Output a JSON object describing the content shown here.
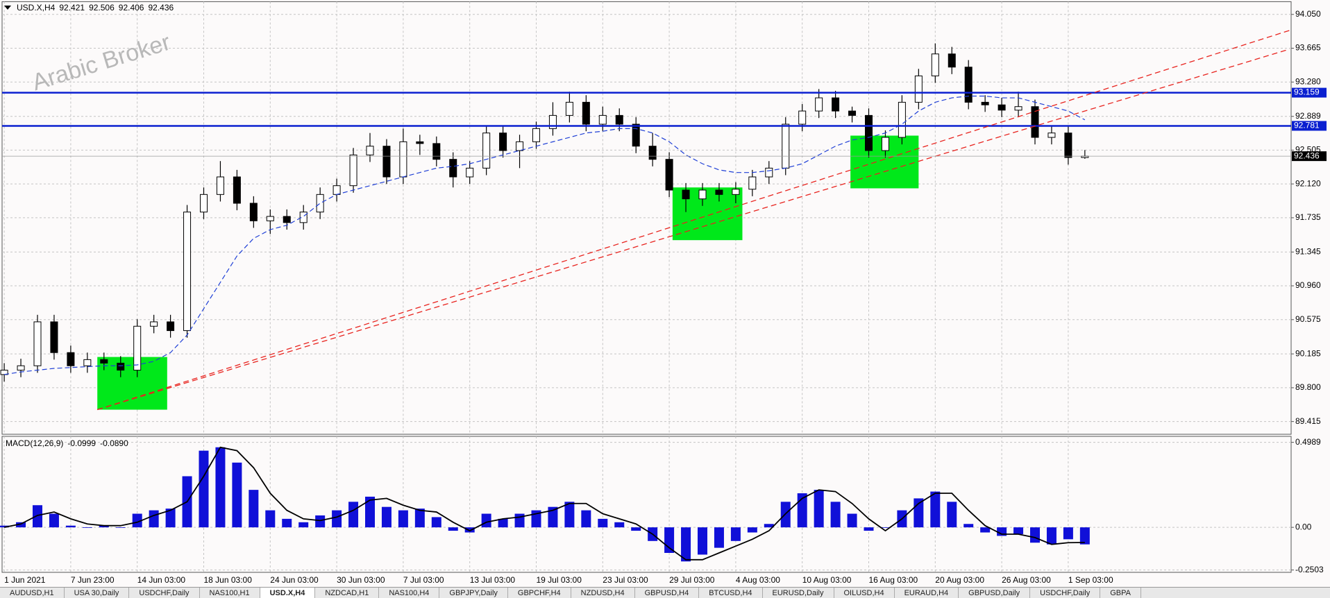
{
  "chart_data": [
    {
      "type": "candlestick",
      "title": "USD.X,H4",
      "watermark": "Arabic Broker",
      "categories": [
        "1 Jun 2021",
        null,
        null,
        null,
        "7 Jun 23:00",
        null,
        null,
        null,
        "14 Jun 03:00",
        null,
        null,
        null,
        "18 Jun 03:00",
        null,
        null,
        null,
        "24 Jun 03:00",
        null,
        null,
        null,
        "30 Jun 03:00",
        null,
        null,
        null,
        "7 Jul 03:00",
        null,
        null,
        null,
        "13 Jul 03:00",
        null,
        null,
        null,
        "19 Jul 03:00",
        null,
        null,
        null,
        "23 Jul 03:00",
        null,
        null,
        null,
        "29 Jul 03:00",
        null,
        null,
        null,
        "4 Aug 03:00",
        null,
        null,
        null,
        "10 Aug 03:00",
        null,
        null,
        null,
        "16 Aug 03:00",
        null,
        null,
        null,
        "20 Aug 03:00",
        null,
        null,
        null,
        "26 Aug 03:00",
        null,
        null,
        null,
        "1 Sep 03:00",
        null
      ],
      "open": [
        89.95,
        90.0,
        90.05,
        90.55,
        90.2,
        90.05,
        90.12,
        90.08,
        90.0,
        90.5,
        90.55,
        90.45,
        91.8,
        92.0,
        92.2,
        91.9,
        91.7,
        91.75,
        91.68,
        91.8,
        92.0,
        92.1,
        92.45,
        92.55,
        92.2,
        92.6,
        92.58,
        92.4,
        92.2,
        92.3,
        92.7,
        92.5,
        92.6,
        92.75,
        92.9,
        93.05,
        92.8,
        92.9,
        92.8,
        92.55,
        92.4,
        92.05,
        91.95,
        92.05,
        92.0,
        92.06,
        92.2,
        92.3,
        92.8,
        92.95,
        93.1,
        92.95,
        92.9,
        92.5,
        92.65,
        93.05,
        93.35,
        93.6,
        93.45,
        93.05,
        93.02,
        92.96,
        93.0,
        92.65,
        92.7,
        92.421
      ],
      "high": [
        90.08,
        90.13,
        90.63,
        90.63,
        90.28,
        90.2,
        90.2,
        90.16,
        90.58,
        90.63,
        90.63,
        91.88,
        92.08,
        92.38,
        92.28,
        91.98,
        91.83,
        91.83,
        91.88,
        92.08,
        92.18,
        92.53,
        92.7,
        92.63,
        92.75,
        92.68,
        92.66,
        92.48,
        92.38,
        92.78,
        92.78,
        92.68,
        92.83,
        93.05,
        93.17,
        93.13,
        93.0,
        92.98,
        92.88,
        92.7,
        92.48,
        92.13,
        92.13,
        92.13,
        92.14,
        92.28,
        92.38,
        92.88,
        93.03,
        93.2,
        93.18,
        93.0,
        92.98,
        92.73,
        93.13,
        93.43,
        93.72,
        93.68,
        93.53,
        93.13,
        93.1,
        93.17,
        93.08,
        92.78,
        92.78,
        92.506
      ],
      "low": [
        89.87,
        89.92,
        89.97,
        90.12,
        89.97,
        89.97,
        90.0,
        89.92,
        89.92,
        90.42,
        90.37,
        90.37,
        91.72,
        91.92,
        91.82,
        91.62,
        91.55,
        91.6,
        91.6,
        91.72,
        91.92,
        92.02,
        92.37,
        92.12,
        92.12,
        92.45,
        92.32,
        92.08,
        92.12,
        92.22,
        92.42,
        92.3,
        92.52,
        92.67,
        92.82,
        92.72,
        92.72,
        92.72,
        92.47,
        92.32,
        91.97,
        91.8,
        91.87,
        91.92,
        91.9,
        91.98,
        92.12,
        92.22,
        92.72,
        92.87,
        92.87,
        92.82,
        92.42,
        92.42,
        92.57,
        92.97,
        93.27,
        93.37,
        92.97,
        92.94,
        92.88,
        92.88,
        92.57,
        92.57,
        92.34,
        92.406
      ],
      "close": [
        90.0,
        90.05,
        90.55,
        90.2,
        90.05,
        90.12,
        90.08,
        90.0,
        90.5,
        90.55,
        90.45,
        91.8,
        92.0,
        92.2,
        91.9,
        91.7,
        91.75,
        91.68,
        91.8,
        92.0,
        92.1,
        92.45,
        92.55,
        92.2,
        92.6,
        92.58,
        92.4,
        92.2,
        92.3,
        92.7,
        92.5,
        92.6,
        92.75,
        92.9,
        93.05,
        92.8,
        92.9,
        92.8,
        92.55,
        92.4,
        92.05,
        91.95,
        92.05,
        92.0,
        92.06,
        92.2,
        92.3,
        92.8,
        92.95,
        93.1,
        92.95,
        92.9,
        92.5,
        92.65,
        93.05,
        93.35,
        93.6,
        93.45,
        93.05,
        93.02,
        92.96,
        93.0,
        92.65,
        92.7,
        92.421,
        92.436
      ],
      "moving_average": {
        "color": "#1f3fd6",
        "values": [
          89.95,
          89.98,
          90.0,
          90.02,
          90.03,
          90.04,
          90.05,
          90.05,
          90.06,
          90.1,
          90.2,
          90.4,
          90.7,
          91.0,
          91.3,
          91.5,
          91.6,
          91.65,
          91.75,
          91.9,
          92.0,
          92.05,
          92.1,
          92.15,
          92.2,
          92.25,
          92.3,
          92.32,
          92.35,
          92.4,
          92.45,
          92.5,
          92.55,
          92.6,
          92.65,
          92.7,
          92.72,
          92.75,
          92.75,
          92.7,
          92.6,
          92.45,
          92.35,
          92.28,
          92.25,
          92.25,
          92.27,
          92.3,
          92.35,
          92.45,
          92.55,
          92.62,
          92.65,
          92.7,
          92.8,
          92.95,
          93.05,
          93.1,
          93.12,
          93.12,
          93.1,
          93.1,
          93.05,
          93.0,
          92.95,
          92.85
        ]
      },
      "hlines": [
        93.159,
        92.781
      ],
      "hline_color": "#0a1fd0",
      "trendlines": [
        {
          "x": [
            5.6,
            77.3
          ],
          "y": [
            89.55,
            93.867
          ]
        },
        {
          "x": [
            5.6,
            77.3
          ],
          "y": [
            89.55,
            93.654
          ]
        }
      ],
      "trendline_color": "#e8231e",
      "zones": [
        {
          "x": [
            5.6,
            9.8
          ],
          "y": [
            89.55,
            90.15
          ]
        },
        {
          "x": [
            40.2,
            44.4
          ],
          "y": [
            91.48,
            92.08
          ]
        },
        {
          "x": [
            50.9,
            55.0
          ],
          "y": [
            92.07,
            92.67
          ]
        }
      ],
      "zone_color": "#00e81a",
      "ylim": [
        89.27,
        94.195
      ],
      "yticks": [
        {
          "value": 94.05,
          "label": "94.050"
        },
        93.665,
        {
          "value": 93.28,
          "label": "93.280"
        },
        92.889,
        92.505,
        {
          "value": 92.12,
          "label": "92.120"
        },
        91.735,
        91.345,
        {
          "value": 90.96,
          "label": "90.960"
        },
        90.575,
        90.185,
        {
          "value": 89.8,
          "label": "89.800"
        },
        89.415
      ],
      "grid": true
    },
    {
      "type": "macd",
      "title": "MACD(12,26,9)",
      "histogram": {
        "color": "#1010d8",
        "values": [
          0.01,
          0.03,
          0.13,
          0.08,
          0.01,
          0.0,
          0.01,
          0.0,
          0.08,
          0.1,
          0.11,
          0.3,
          0.45,
          0.47,
          0.38,
          0.22,
          0.1,
          0.05,
          0.03,
          0.07,
          0.1,
          0.15,
          0.18,
          0.12,
          0.1,
          0.11,
          0.06,
          -0.02,
          -0.03,
          0.08,
          0.05,
          0.08,
          0.1,
          0.12,
          0.15,
          0.1,
          0.05,
          0.03,
          -0.02,
          -0.08,
          -0.15,
          -0.2,
          -0.16,
          -0.12,
          -0.08,
          -0.03,
          0.02,
          0.15,
          0.2,
          0.22,
          0.15,
          0.08,
          -0.02,
          0.0,
          0.1,
          0.17,
          0.21,
          0.15,
          0.02,
          -0.03,
          -0.05,
          -0.04,
          -0.09,
          -0.1,
          -0.07,
          -0.0999
        ]
      },
      "signal": {
        "color": "#000000",
        "last_value_label": "-0.0890",
        "values": [
          0.0,
          0.02,
          0.07,
          0.09,
          0.05,
          0.02,
          0.01,
          0.01,
          0.03,
          0.07,
          0.1,
          0.15,
          0.3,
          0.47,
          0.45,
          0.35,
          0.2,
          0.1,
          0.05,
          0.04,
          0.06,
          0.1,
          0.16,
          0.17,
          0.13,
          0.1,
          0.09,
          0.03,
          -0.02,
          0.03,
          0.05,
          0.06,
          0.08,
          0.1,
          0.14,
          0.14,
          0.08,
          0.05,
          0.02,
          -0.04,
          -0.12,
          -0.19,
          -0.19,
          -0.15,
          -0.11,
          -0.07,
          -0.02,
          0.08,
          0.17,
          0.22,
          0.21,
          0.14,
          0.05,
          -0.02,
          0.05,
          0.14,
          0.2,
          0.2,
          0.1,
          0.01,
          -0.04,
          -0.04,
          -0.06,
          -0.1,
          -0.09,
          -0.089
        ]
      },
      "ylim": [
        -0.264,
        0.534
      ],
      "yticks": [
        0.4989,
        {
          "value": 0,
          "label": "0.00"
        },
        -0.2503
      ],
      "grid": true
    }
  ],
  "tabs": [
    "AUDUSD,H1",
    "USA 30,Daily",
    "USDCHF,Daily",
    "NAS100,H1",
    "USD.X,H4",
    "NZDCAD,H1",
    "NAS100,H4",
    "GBPJPY,Daily",
    "GBPCHF,H4",
    "NZDUSD,H4",
    "GBPUSD,H4",
    "BTCUSD,H4",
    "EURUSD,Daily",
    "OILUSD,H4",
    "EURAUD,H4",
    "GBPUSD,Daily",
    "USDCHF,Daily",
    "GBPA"
  ],
  "active_tab": "USD.X,H4"
}
